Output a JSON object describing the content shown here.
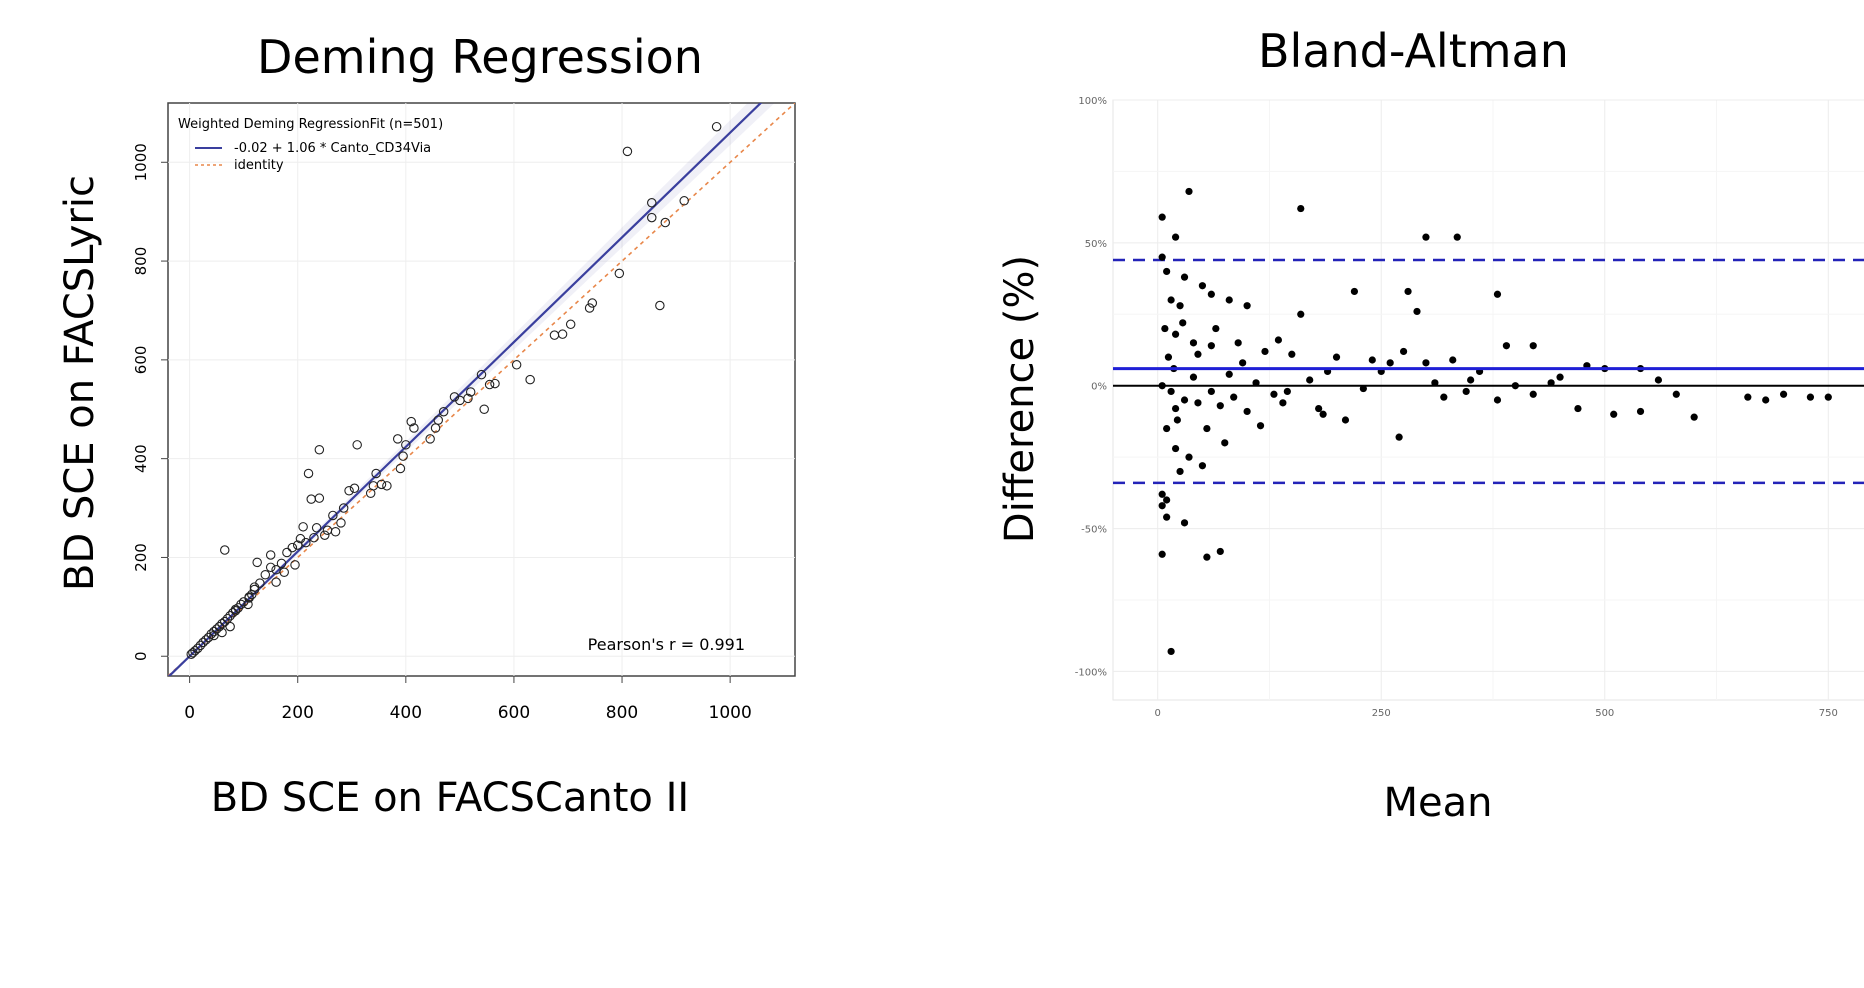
{
  "left": {
    "title": "Deming Regression",
    "xlabel": "BD SCE on FACSCanto II",
    "ylabel": "BD SCE on FACSLyric",
    "legend_title": "Weighted Deming RegressionFit (n=501)",
    "legend_fit": "-0.02 + 1.06 * Canto_CD34Via",
    "legend_identity": "identity",
    "pearson": "Pearson's r = 0.991",
    "xticks": [
      "0",
      "200",
      "400",
      "600",
      "800",
      "1000"
    ],
    "yticks": [
      "0",
      "200",
      "400",
      "600",
      "800",
      "1000"
    ]
  },
  "right": {
    "title": "Bland-Altman",
    "xlabel": "Mean",
    "ylabel": "Difference (%)",
    "xticks": [
      "0",
      "250",
      "500",
      "750"
    ],
    "yticks": [
      "100%",
      "50%",
      "0%",
      "-50%",
      "-100%"
    ]
  },
  "colors": {
    "fit_line": "#3a3f9e",
    "identity_line": "#e8874a",
    "bias_line": "#1f1fd6",
    "loa_line": "#2323b8",
    "zero_line": "#000000"
  },
  "chart_data": [
    {
      "type": "scatter",
      "title": "Deming Regression",
      "xlabel": "BD SCE on FACSCanto II",
      "ylabel": "BD SCE on FACSLyric",
      "xlim": [
        -40,
        1120
      ],
      "ylim": [
        -40,
        1120
      ],
      "grid": true,
      "legend_position": "top-left",
      "fit": {
        "intercept": -0.02,
        "slope": 1.06
      },
      "identity": {
        "intercept": 0,
        "slope": 1
      },
      "pearson_r": 0.991,
      "n": 501,
      "points": [
        [
          975,
          1072
        ],
        [
          810,
          1022
        ],
        [
          855,
          918
        ],
        [
          855,
          888
        ],
        [
          915,
          922
        ],
        [
          880,
          878
        ],
        [
          795,
          775
        ],
        [
          870,
          710
        ],
        [
          745,
          715
        ],
        [
          740,
          705
        ],
        [
          705,
          672
        ],
        [
          690,
          652
        ],
        [
          675,
          650
        ],
        [
          630,
          560
        ],
        [
          605,
          590
        ],
        [
          565,
          552
        ],
        [
          555,
          550
        ],
        [
          540,
          570
        ],
        [
          520,
          535
        ],
        [
          545,
          500
        ],
        [
          515,
          522
        ],
        [
          500,
          518
        ],
        [
          490,
          525
        ],
        [
          470,
          495
        ],
        [
          460,
          478
        ],
        [
          455,
          462
        ],
        [
          445,
          440
        ],
        [
          410,
          475
        ],
        [
          415,
          462
        ],
        [
          400,
          428
        ],
        [
          395,
          405
        ],
        [
          390,
          380
        ],
        [
          385,
          440
        ],
        [
          365,
          345
        ],
        [
          355,
          348
        ],
        [
          345,
          370
        ],
        [
          340,
          345
        ],
        [
          335,
          330
        ],
        [
          310,
          428
        ],
        [
          305,
          340
        ],
        [
          295,
          335
        ],
        [
          285,
          300
        ],
        [
          280,
          270
        ],
        [
          270,
          252
        ],
        [
          265,
          285
        ],
        [
          240,
          320
        ],
        [
          235,
          260
        ],
        [
          225,
          318
        ],
        [
          220,
          370
        ],
        [
          240,
          418
        ],
        [
          210,
          262
        ],
        [
          205,
          238
        ],
        [
          200,
          225
        ],
        [
          190,
          220
        ],
        [
          180,
          210
        ],
        [
          170,
          188
        ],
        [
          160,
          175
        ],
        [
          150,
          180
        ],
        [
          140,
          165
        ],
        [
          130,
          148
        ],
        [
          120,
          135
        ],
        [
          115,
          125
        ],
        [
          110,
          118
        ],
        [
          100,
          110
        ],
        [
          95,
          105
        ],
        [
          90,
          98
        ],
        [
          85,
          92
        ],
        [
          80,
          88
        ],
        [
          75,
          82
        ],
        [
          70,
          76
        ],
        [
          65,
          70
        ],
        [
          60,
          66
        ],
        [
          55,
          60
        ],
        [
          50,
          55
        ],
        [
          45,
          50
        ],
        [
          40,
          45
        ],
        [
          35,
          38
        ],
        [
          30,
          33
        ],
        [
          25,
          28
        ],
        [
          20,
          22
        ],
        [
          15,
          16
        ],
        [
          10,
          11
        ],
        [
          6,
          7
        ],
        [
          3,
          4
        ],
        [
          65,
          215
        ],
        [
          125,
          190
        ],
        [
          150,
          205
        ],
        [
          110,
          120
        ],
        [
          108,
          105
        ],
        [
          85,
          95
        ],
        [
          75,
          60
        ],
        [
          60,
          48
        ],
        [
          45,
          42
        ],
        [
          160,
          150
        ],
        [
          175,
          170
        ],
        [
          195,
          185
        ],
        [
          215,
          230
        ],
        [
          250,
          245
        ],
        [
          255,
          255
        ],
        [
          230,
          240
        ],
        [
          120,
          140
        ]
      ]
    },
    {
      "type": "scatter",
      "title": "Bland-Altman",
      "xlabel": "Mean",
      "ylabel": "Difference (%)",
      "xlim": [
        -50,
        800
      ],
      "ylim": [
        -110,
        100
      ],
      "grid": true,
      "bias": 6,
      "upper_loa": 44,
      "lower_loa": -34,
      "zero": 0,
      "points": [
        [
          5,
          59
        ],
        [
          35,
          68
        ],
        [
          20,
          52
        ],
        [
          160,
          62
        ],
        [
          300,
          52
        ],
        [
          335,
          52
        ],
        [
          5,
          45
        ],
        [
          10,
          40
        ],
        [
          30,
          38
        ],
        [
          50,
          35
        ],
        [
          15,
          30
        ],
        [
          25,
          28
        ],
        [
          60,
          32
        ],
        [
          80,
          30
        ],
        [
          100,
          28
        ],
        [
          160,
          25
        ],
        [
          220,
          33
        ],
        [
          280,
          33
        ],
        [
          290,
          26
        ],
        [
          380,
          32
        ],
        [
          8,
          20
        ],
        [
          20,
          18
        ],
        [
          40,
          15
        ],
        [
          60,
          14
        ],
        [
          90,
          15
        ],
        [
          120,
          12
        ],
        [
          150,
          11
        ],
        [
          200,
          10
        ],
        [
          240,
          9
        ],
        [
          260,
          8
        ],
        [
          300,
          8
        ],
        [
          330,
          9
        ],
        [
          360,
          5
        ],
        [
          390,
          14
        ],
        [
          420,
          14
        ],
        [
          450,
          3
        ],
        [
          480,
          7
        ],
        [
          500,
          6
        ],
        [
          540,
          6
        ],
        [
          560,
          2
        ],
        [
          5,
          0
        ],
        [
          15,
          -2
        ],
        [
          30,
          -5
        ],
        [
          45,
          -6
        ],
        [
          70,
          -7
        ],
        [
          100,
          -9
        ],
        [
          140,
          -6
        ],
        [
          180,
          -8
        ],
        [
          210,
          -12
        ],
        [
          270,
          -18
        ],
        [
          320,
          -4
        ],
        [
          380,
          -5
        ],
        [
          420,
          -3
        ],
        [
          470,
          -8
        ],
        [
          510,
          -10
        ],
        [
          540,
          -9
        ],
        [
          580,
          -3
        ],
        [
          600,
          -11
        ],
        [
          660,
          -4
        ],
        [
          680,
          -5
        ],
        [
          700,
          -3
        ],
        [
          730,
          -4
        ],
        [
          750,
          -4
        ],
        [
          10,
          -15
        ],
        [
          20,
          -22
        ],
        [
          25,
          -30
        ],
        [
          35,
          -25
        ],
        [
          50,
          -28
        ],
        [
          5,
          -38
        ],
        [
          10,
          -40
        ],
        [
          30,
          -48
        ],
        [
          5,
          -42
        ],
        [
          10,
          -46
        ],
        [
          5,
          -59
        ],
        [
          55,
          -60
        ],
        [
          70,
          -58
        ],
        [
          15,
          -93
        ],
        [
          20,
          -8
        ],
        [
          40,
          3
        ],
        [
          60,
          -2
        ],
        [
          80,
          4
        ],
        [
          110,
          1
        ],
        [
          130,
          -3
        ],
        [
          170,
          2
        ],
        [
          190,
          5
        ],
        [
          230,
          -1
        ],
        [
          310,
          1
        ],
        [
          350,
          2
        ],
        [
          400,
          0
        ],
        [
          440,
          1
        ],
        [
          12,
          10
        ],
        [
          18,
          6
        ],
        [
          22,
          -12
        ],
        [
          28,
          22
        ],
        [
          45,
          11
        ],
        [
          55,
          -15
        ],
        [
          65,
          20
        ],
        [
          75,
          -20
        ],
        [
          85,
          -4
        ],
        [
          95,
          8
        ],
        [
          115,
          -14
        ],
        [
          135,
          16
        ],
        [
          145,
          -2
        ],
        [
          185,
          -10
        ],
        [
          250,
          5
        ],
        [
          275,
          12
        ],
        [
          345,
          -2
        ]
      ]
    }
  ]
}
